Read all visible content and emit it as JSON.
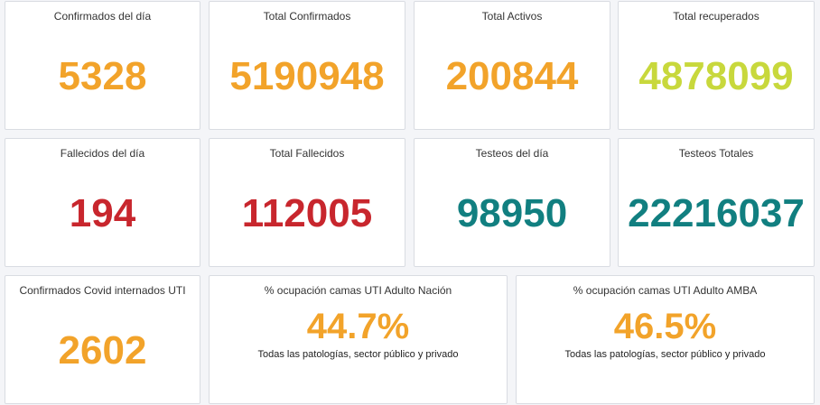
{
  "colors": {
    "orange": "#f2a32a",
    "lime": "#c8d83c",
    "red": "#c8262d",
    "teal": "#117f80"
  },
  "row1": {
    "confirmados_dia": {
      "title": "Confirmados del día",
      "value": "5328"
    },
    "total_confirmados": {
      "title": "Total Confirmados",
      "value": "5190948"
    },
    "total_activos": {
      "title": "Total Activos",
      "value": "200844"
    },
    "total_recuperados": {
      "title": "Total recuperados",
      "value": "4878099"
    }
  },
  "row2": {
    "fallecidos_dia": {
      "title": "Fallecidos del día",
      "value": "194"
    },
    "total_fallecidos": {
      "title": "Total Fallecidos",
      "value": "112005"
    },
    "testeos_dia": {
      "title": "Testeos del día",
      "value": "98950"
    },
    "testeos_totales": {
      "title": "Testeos Totales",
      "value": "22216037"
    }
  },
  "row3": {
    "internados_uti": {
      "title": "Confirmados Covid internados UTI",
      "value": "2602"
    },
    "ocupacion_nacion": {
      "title": "% ocupación camas UTI Adulto Nación",
      "value": "44.7%",
      "subtitle": "Todas las patologías, sector público y privado"
    },
    "ocupacion_amba": {
      "title": "% ocupación camas UTI Adulto AMBA",
      "value": "46.5%",
      "subtitle": "Todas las patologías, sector público y privado"
    }
  }
}
